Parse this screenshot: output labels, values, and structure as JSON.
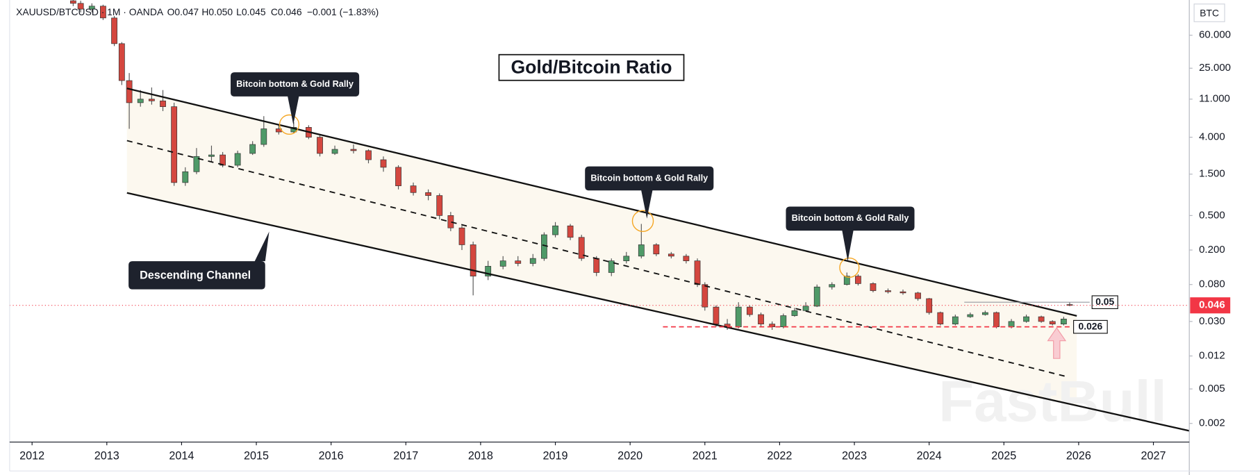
{
  "chart_data": {
    "type": "candlestick",
    "header": {
      "symbol": "XAUUSD/BTCUSD · 1M · OANDA",
      "ohlc": [
        "O0.047",
        "H0.050",
        "L0.045",
        "C0.046"
      ],
      "change": "−0.001 (−1.83%)"
    },
    "unit": "BTC",
    "title": "Gold/Bitcoin Ratio",
    "callouts": [
      "Bitcoin bottom & Gold Rally",
      "Bitcoin bottom & Gold Rally",
      "Bitcoin bottom & Gold Rally"
    ],
    "channel_label": "Descending Channel",
    "watermark": "FastBull",
    "levels": [
      0.05,
      0.026
    ],
    "last_price": 0.046,
    "y_scale": "log",
    "xlim": [
      2011.7,
      2027.48
    ],
    "xticks": [
      2012,
      2013,
      2014,
      2015,
      2016,
      2017,
      2018,
      2019,
      2020,
      2021,
      2022,
      2023,
      2024,
      2025,
      2026,
      2027
    ],
    "ylim": [
      0.00122,
      153
    ],
    "yticks": [
      {
        "value": 60,
        "label": "60.000"
      },
      {
        "value": 25,
        "label": "25.000"
      },
      {
        "value": 11,
        "label": "11.000"
      },
      {
        "value": 4,
        "label": "4.000"
      },
      {
        "value": 1.5,
        "label": "1.500"
      },
      {
        "value": 0.5,
        "label": "0.500"
      },
      {
        "value": 0.2,
        "label": "0.200"
      },
      {
        "value": 0.08,
        "label": "0.080"
      },
      {
        "value": 0.03,
        "label": "0.030"
      },
      {
        "value": 0.012,
        "label": "0.012"
      },
      {
        "value": 0.005,
        "label": "0.005"
      },
      {
        "value": 0.002,
        "label": "0.002"
      }
    ],
    "up_color": "#4f9a68",
    "down_color": "#d4473f",
    "series": [
      {
        "x": [
          2012.55,
          2012.65,
          2012.8,
          2012.95,
          2013.1,
          2013.2,
          2013.3,
          2013.45,
          2013.6,
          2013.75,
          2013.9,
          2014.05,
          2014.2,
          2014.4,
          2014.55,
          2014.75,
          2014.95,
          2015.1,
          2015.3,
          2015.5,
          2015.7,
          2015.85,
          2016.05,
          2016.3,
          2016.5,
          2016.7,
          2016.9,
          2017.1,
          2017.3,
          2017.45,
          2017.6,
          2017.75,
          2017.9,
          2018.1,
          2018.3,
          2018.5,
          2018.7,
          2018.85,
          2019.0,
          2019.2,
          2019.35,
          2019.55,
          2019.75,
          2019.95,
          2020.15,
          2020.35,
          2020.55,
          2020.75,
          2020.9,
          2021.0,
          2021.15,
          2021.3,
          2021.45,
          2021.6,
          2021.75,
          2021.9,
          2022.05,
          2022.2,
          2022.35,
          2022.5,
          2022.7,
          2022.9,
          2023.05,
          2023.25,
          2023.45,
          2023.65,
          2023.85,
          2024.0,
          2024.15,
          2024.35,
          2024.55,
          2024.75,
          2024.9,
          2025.1,
          2025.3,
          2025.5,
          2025.65,
          2025.8,
          2025.88
        ],
        "open": [
          150,
          140,
          120,
          130,
          95,
          48,
          18,
          10,
          11,
          10.5,
          9,
          1.2,
          1.6,
          2.4,
          2.5,
          1.9,
          2.6,
          3.3,
          5,
          4.6,
          5.2,
          4.0,
          2.6,
          2.9,
          2.8,
          2.2,
          1.8,
          1.1,
          0.92,
          0.85,
          0.5,
          0.36,
          0.23,
          0.1,
          0.13,
          0.15,
          0.14,
          0.16,
          0.3,
          0.38,
          0.28,
          0.16,
          0.11,
          0.15,
          0.17,
          0.23,
          0.18,
          0.17,
          0.15,
          0.08,
          0.044,
          0.028,
          0.026,
          0.044,
          0.036,
          0.028,
          0.026,
          0.035,
          0.04,
          0.045,
          0.075,
          0.08,
          0.1,
          0.082,
          0.068,
          0.066,
          0.064,
          0.055,
          0.038,
          0.028,
          0.034,
          0.036,
          0.038,
          0.026,
          0.03,
          0.034,
          0.03,
          0.028,
          0.047
        ],
        "high": [
          160,
          150,
          140,
          135,
          100,
          50,
          22,
          14,
          15,
          14,
          10,
          1.8,
          3,
          3.2,
          2.7,
          2.8,
          3.6,
          7,
          5.6,
          6,
          5.5,
          4.2,
          3.2,
          3.3,
          2.9,
          2.4,
          1.9,
          1.2,
          1.0,
          0.9,
          0.55,
          0.38,
          0.25,
          0.15,
          0.17,
          0.17,
          0.18,
          0.32,
          0.42,
          0.4,
          0.3,
          0.17,
          0.16,
          0.19,
          0.4,
          0.24,
          0.19,
          0.18,
          0.16,
          0.085,
          0.046,
          0.032,
          0.05,
          0.046,
          0.038,
          0.03,
          0.037,
          0.043,
          0.05,
          0.08,
          0.085,
          0.11,
          0.105,
          0.085,
          0.072,
          0.07,
          0.066,
          0.056,
          0.039,
          0.036,
          0.038,
          0.04,
          0.039,
          0.032,
          0.036,
          0.035,
          0.031,
          0.034,
          0.05
        ],
        "low": [
          130,
          110,
          110,
          90,
          45,
          16,
          5,
          9,
          9.5,
          8,
          1.1,
          1.1,
          1.5,
          2.1,
          1.8,
          1.8,
          2.5,
          3.1,
          4.3,
          4.4,
          3.8,
          2.4,
          2.5,
          2.6,
          2.0,
          1.6,
          1.0,
          0.85,
          0.75,
          0.45,
          0.33,
          0.2,
          0.06,
          0.09,
          0.12,
          0.13,
          0.13,
          0.15,
          0.28,
          0.26,
          0.15,
          0.1,
          0.1,
          0.14,
          0.16,
          0.17,
          0.16,
          0.14,
          0.075,
          0.04,
          0.026,
          0.024,
          0.025,
          0.034,
          0.026,
          0.024,
          0.025,
          0.034,
          0.039,
          0.044,
          0.07,
          0.078,
          0.078,
          0.065,
          0.063,
          0.061,
          0.052,
          0.036,
          0.027,
          0.027,
          0.033,
          0.035,
          0.025,
          0.025,
          0.029,
          0.029,
          0.027,
          0.027,
          0.045
        ],
        "close": [
          140,
          120,
          130,
          95,
          48,
          18,
          10,
          11,
          10.5,
          9,
          1.2,
          1.6,
          2.4,
          2.5,
          1.9,
          2.6,
          3.3,
          5,
          4.6,
          5.2,
          4.0,
          2.6,
          2.9,
          2.8,
          2.2,
          1.8,
          1.1,
          0.92,
          0.85,
          0.5,
          0.36,
          0.23,
          0.1,
          0.13,
          0.15,
          0.14,
          0.16,
          0.3,
          0.38,
          0.28,
          0.16,
          0.11,
          0.15,
          0.17,
          0.23,
          0.18,
          0.17,
          0.15,
          0.08,
          0.044,
          0.028,
          0.026,
          0.044,
          0.036,
          0.028,
          0.026,
          0.035,
          0.04,
          0.045,
          0.075,
          0.08,
          0.1,
          0.082,
          0.068,
          0.066,
          0.064,
          0.055,
          0.038,
          0.028,
          0.034,
          0.036,
          0.038,
          0.026,
          0.03,
          0.034,
          0.03,
          0.028,
          0.032,
          0.046
        ]
      }
    ]
  }
}
